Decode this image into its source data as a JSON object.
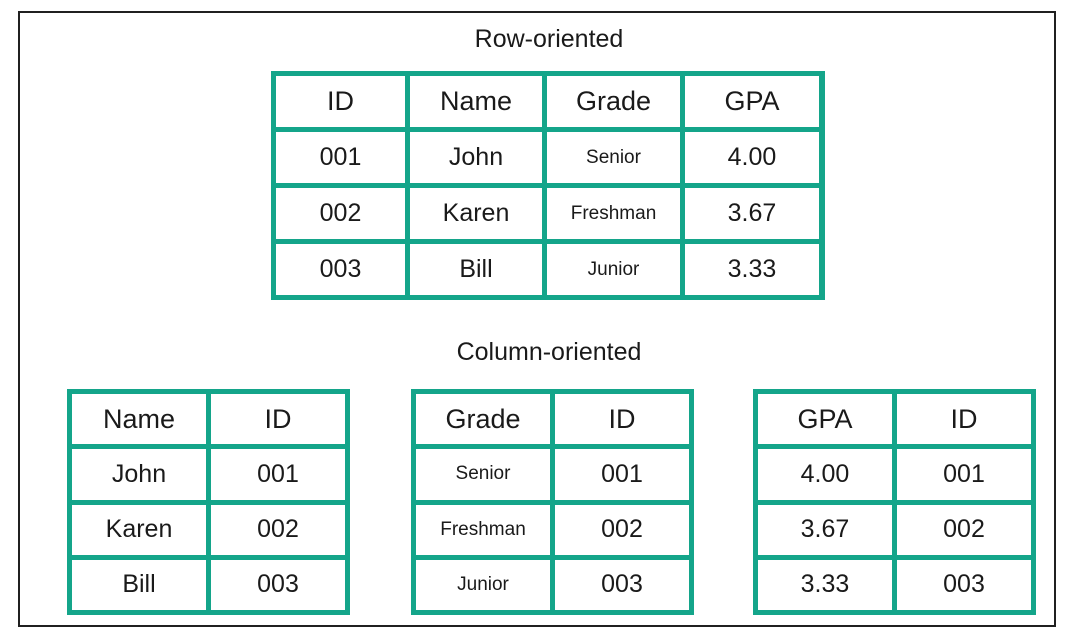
{
  "titles": {
    "row_oriented": "Row-oriented",
    "column_oriented": "Column-oriented"
  },
  "row_table": {
    "headers": [
      "ID",
      "Name",
      "Grade",
      "GPA"
    ],
    "rows": [
      [
        "001",
        "John",
        "Senior",
        "4.00"
      ],
      [
        "002",
        "Karen",
        "Freshman",
        "3.67"
      ],
      [
        "003",
        "Bill",
        "Junior",
        "3.33"
      ]
    ]
  },
  "column_tables": [
    {
      "headers": [
        "Name",
        "ID"
      ],
      "rows": [
        [
          "John",
          "001"
        ],
        [
          "Karen",
          "002"
        ],
        [
          "Bill",
          "003"
        ]
      ]
    },
    {
      "headers": [
        "Grade",
        "ID"
      ],
      "rows": [
        [
          "Senior",
          "001"
        ],
        [
          "Freshman",
          "002"
        ],
        [
          "Junior",
          "003"
        ]
      ]
    },
    {
      "headers": [
        "GPA",
        "ID"
      ],
      "rows": [
        [
          "4.00",
          "001"
        ],
        [
          "3.67",
          "002"
        ],
        [
          "3.33",
          "003"
        ]
      ]
    }
  ],
  "colors": {
    "border": "#14a58a",
    "frame": "#202020",
    "background": "#ffffff"
  }
}
